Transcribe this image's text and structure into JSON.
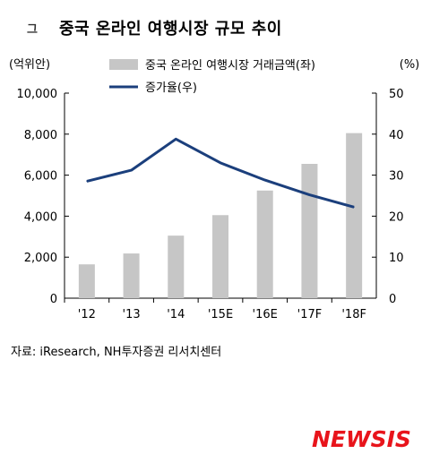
{
  "header": {
    "mark": "그",
    "title": "중국 온라인 여행시장 규모 추이"
  },
  "chart_data": {
    "type": "bar",
    "categories": [
      "'12",
      "'13",
      "'14",
      "'15E",
      "'16E",
      "'17F",
      "'18F"
    ],
    "series": [
      {
        "name": "중국 온라인 여행시장 거래금액(좌)",
        "type": "bar",
        "axis": "left",
        "values": [
          1650,
          2180,
          3050,
          4050,
          5250,
          6550,
          8050
        ]
      },
      {
        "name": "증가율(우)",
        "type": "line",
        "axis": "right",
        "values": [
          28.5,
          31.2,
          38.8,
          33.0,
          28.8,
          25.2,
          22.2
        ]
      }
    ],
    "left_unit": "(억위안)",
    "right_unit": "(%)",
    "ylim_left": [
      0,
      10000
    ],
    "ylim_right": [
      0,
      50
    ],
    "left_ticks": [
      "0",
      "2,000",
      "4,000",
      "6,000",
      "8,000",
      "10,000"
    ],
    "right_ticks": [
      "0",
      "10",
      "20",
      "30",
      "40",
      "50"
    ],
    "legend_position": "top",
    "colors": {
      "bar": "#c6c6c6",
      "line": "#1b3f7c"
    }
  },
  "footer": {
    "source": "자료: iResearch, NH투자증권 리서치센터",
    "logo": "NEWSIS"
  }
}
